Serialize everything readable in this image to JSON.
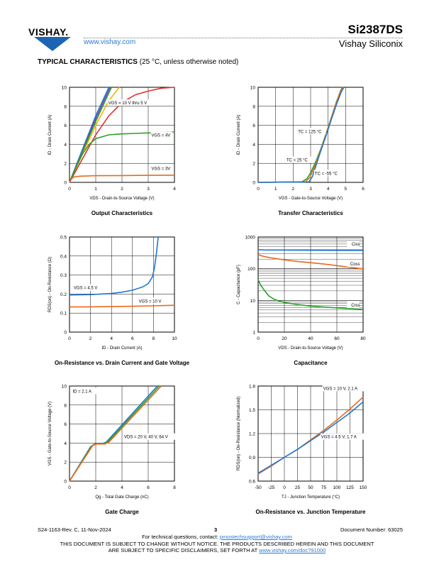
{
  "header": {
    "brand": "VISHAY.",
    "website": "www.vishay.com",
    "part_number": "Si2387DS",
    "company": "Vishay Siliconix"
  },
  "section": {
    "title": "TYPICAL CHARACTERISTICS",
    "subtitle": "(25 °C, unless otherwise noted)"
  },
  "chart_data": [
    {
      "type": "line",
      "title": "Output Characteristics",
      "xlabel": "VDS - Drain-to-Source Voltage (V)",
      "ylabel": "ID - Drain Current (A)",
      "xlim": [
        0,
        4
      ],
      "ylim": [
        0,
        10
      ],
      "xticks": [
        0,
        1,
        2,
        3,
        4
      ],
      "yticks": [
        0,
        2,
        4,
        6,
        8,
        10
      ],
      "grid": true,
      "annotations": [
        "VGS = 10 V thru 5 V",
        "VGS = 4V",
        "VGS = 3V"
      ],
      "series": [
        {
          "color": "#1f77d4",
          "x": [
            0,
            0.5,
            1.0,
            1.5
          ],
          "y": [
            0,
            3.5,
            7.0,
            10.0
          ]
        },
        {
          "color": "#7a3fb0",
          "x": [
            0,
            0.5,
            1.0,
            1.55
          ],
          "y": [
            0,
            3.3,
            6.7,
            10.0
          ]
        },
        {
          "color": "#2aa02a",
          "x": [
            0,
            0.5,
            1.0,
            1.6
          ],
          "y": [
            0,
            3.2,
            6.4,
            10.0
          ]
        },
        {
          "color": "#f4b400",
          "x": [
            0,
            0.5,
            1.0,
            1.5,
            1.9
          ],
          "y": [
            0,
            3.0,
            6.0,
            8.6,
            10.0
          ]
        },
        {
          "color": "#e03030",
          "x": [
            0,
            0.5,
            1.0,
            1.5,
            2.0,
            2.5,
            3.0,
            3.5,
            4.0
          ],
          "y": [
            0,
            2.5,
            5.0,
            7.0,
            8.4,
            9.2,
            9.6,
            9.9,
            10.0
          ]
        },
        {
          "color": "#2aa02a",
          "x": [
            0,
            0.25,
            0.5,
            0.75,
            1.0,
            1.5,
            2.0,
            2.5,
            3.0,
            3.5,
            4.0
          ],
          "y": [
            0,
            1.6,
            3.0,
            4.0,
            4.6,
            5.0,
            5.1,
            5.15,
            5.2,
            5.25,
            5.3
          ]
        },
        {
          "color": "#e86a1c",
          "x": [
            0,
            0.1,
            0.2,
            0.4,
            1.0,
            2.0,
            3.0,
            4.0
          ],
          "y": [
            0,
            0.45,
            0.6,
            0.65,
            0.7,
            0.72,
            0.74,
            0.75
          ]
        }
      ]
    },
    {
      "type": "line",
      "title": "Transfer Characteristics",
      "xlabel": "VGS - Gate-to-Source Voltage (V)",
      "ylabel": "ID - Drain Current (A)",
      "xlim": [
        0,
        6
      ],
      "ylim": [
        0,
        10
      ],
      "xticks": [
        0,
        1,
        2,
        3,
        4,
        5,
        6
      ],
      "yticks": [
        0,
        2,
        4,
        6,
        8,
        10
      ],
      "grid": true,
      "annotations": [
        "TC = 125 °C",
        "TC = 25 °C",
        "TC = -55 °C"
      ],
      "series": [
        {
          "name": "TC = 125 °C",
          "color": "#2aa02a",
          "x": [
            0,
            2.5,
            2.8,
            3.0,
            3.3,
            3.6,
            3.9,
            4.2,
            4.5,
            4.8
          ],
          "y": [
            0,
            0.05,
            0.4,
            1.0,
            2.2,
            3.6,
            5.2,
            6.9,
            8.6,
            10.0
          ]
        },
        {
          "name": "TC = 25 °C",
          "color": "#e86a1c",
          "x": [
            0,
            2.7,
            2.95,
            3.2,
            3.5,
            3.8,
            4.1,
            4.4,
            4.7,
            4.85
          ],
          "y": [
            0,
            0.05,
            0.5,
            1.5,
            3.0,
            4.6,
            6.3,
            8.0,
            9.6,
            10.0
          ]
        },
        {
          "name": "TC = -55 °C",
          "color": "#1f77d4",
          "x": [
            0,
            2.9,
            3.1,
            3.35,
            3.6,
            3.9,
            4.2,
            4.5,
            4.75,
            4.9
          ],
          "y": [
            0,
            0.05,
            0.6,
            2.0,
            3.4,
            5.0,
            6.7,
            8.3,
            9.5,
            10.0
          ]
        }
      ]
    },
    {
      "type": "line",
      "title": "On-Resistance vs. Drain Current and Gate Voltage",
      "xlabel": "ID - Drain Current (A)",
      "ylabel": "RDS(on) - On-Resistance (Ω)",
      "xlim": [
        0,
        10
      ],
      "ylim": [
        0,
        0.5
      ],
      "xticks": [
        0,
        2,
        4,
        6,
        8,
        10
      ],
      "yticks": [
        0,
        0.1,
        0.2,
        0.3,
        0.4,
        0.5
      ],
      "grid": true,
      "annotations": [
        "VGS = 4.5 V",
        "VGS = 10 V"
      ],
      "series": [
        {
          "name": "VGS = 4.5 V",
          "color": "#1f77d4",
          "x": [
            0,
            2,
            4,
            5,
            6,
            7,
            7.5,
            7.9,
            8.1,
            8.3,
            8.45
          ],
          "y": [
            0.195,
            0.197,
            0.203,
            0.21,
            0.22,
            0.238,
            0.255,
            0.29,
            0.34,
            0.42,
            0.5
          ]
        },
        {
          "name": "VGS = 10 V",
          "color": "#e86a1c",
          "x": [
            0,
            2,
            4,
            6,
            8,
            10
          ],
          "y": [
            0.132,
            0.133,
            0.134,
            0.136,
            0.138,
            0.141
          ]
        }
      ]
    },
    {
      "type": "line",
      "title": "Capacitance",
      "xlabel": "VDS - Drain-to-Source Voltage (V)",
      "ylabel": "C - Capacitance (pF)",
      "xlim": [
        0,
        80
      ],
      "ylim": [
        1,
        1000
      ],
      "yscale": "log",
      "xticks": [
        0,
        20,
        40,
        60,
        80
      ],
      "yticks": [
        1,
        10,
        100,
        1000
      ],
      "grid": true,
      "annotations": [
        "Ciss",
        "Coss",
        "Crss"
      ],
      "series": [
        {
          "name": "Ciss",
          "color": "#1f77d4",
          "x": [
            0,
            5,
            20,
            40,
            60,
            80
          ],
          "y": [
            400,
            390,
            385,
            382,
            380,
            378
          ]
        },
        {
          "name": "Coss",
          "color": "#e86a1c",
          "x": [
            0,
            2,
            5,
            10,
            20,
            30,
            40,
            50,
            60,
            70,
            80
          ],
          "y": [
            280,
            260,
            240,
            220,
            190,
            170,
            155,
            140,
            125,
            110,
            100
          ]
        },
        {
          "name": "Crss",
          "color": "#2aa02a",
          "x": [
            0,
            2,
            5,
            8,
            12,
            16,
            20,
            30,
            40,
            60,
            80
          ],
          "y": [
            45,
            30,
            20,
            14,
            11,
            9.5,
            8.6,
            7.4,
            6.6,
            5.8,
            5.2
          ]
        }
      ]
    },
    {
      "type": "line",
      "title": "Gate Charge",
      "xlabel": "Qg - Total Gate Charge (nC)",
      "ylabel": "VGS - Gate-to-Source Voltage (V)",
      "xlim": [
        0,
        8
      ],
      "ylim": [
        0,
        10
      ],
      "xticks": [
        0,
        2,
        4,
        6,
        8
      ],
      "yticks": [
        0,
        2,
        4,
        6,
        8,
        10
      ],
      "grid": true,
      "annotations": [
        "ID = 2.1 A",
        "VDS = 20 V, 40 V, 64 V"
      ],
      "series": [
        {
          "name": "VDS = 20 V",
          "color": "#1f77d4",
          "x": [
            0,
            1.6,
            1.9,
            2.4,
            2.8,
            6.7
          ],
          "y": [
            0,
            3.6,
            3.9,
            3.9,
            4.1,
            10.0
          ]
        },
        {
          "name": "VDS = 40 V",
          "color": "#2aa02a",
          "x": [
            0,
            1.7,
            2.0,
            2.5,
            2.9,
            6.85
          ],
          "y": [
            0,
            3.7,
            3.9,
            3.9,
            4.1,
            10.0
          ]
        },
        {
          "name": "VDS = 64 V",
          "color": "#e86a1c",
          "x": [
            0,
            1.8,
            2.1,
            2.7,
            3.0,
            7.0
          ],
          "y": [
            0,
            3.8,
            3.9,
            3.9,
            4.1,
            10.0
          ]
        }
      ]
    },
    {
      "type": "line",
      "title": "On-Resistance vs. Junction Temperature",
      "xlabel": "TJ - Junction Temperature (°C)",
      "ylabel": "RDS(on) - On-Resistance (Normalized)",
      "xlim": [
        -50,
        150
      ],
      "ylim": [
        0.6,
        1.8
      ],
      "xticks": [
        -50,
        -25,
        0,
        25,
        50,
        75,
        100,
        125,
        150
      ],
      "yticks": [
        0.6,
        0.9,
        1.2,
        1.5,
        1.8
      ],
      "grid": true,
      "annotations": [
        "VGS = 10 V, 2.1 A",
        "VGS = 4.5 V, 1.7 A"
      ],
      "series": [
        {
          "name": "VGS = 10 V, 2.1 A",
          "color": "#e86a1c",
          "x": [
            -50,
            -25,
            0,
            25,
            50,
            75,
            100,
            125,
            150
          ],
          "y": [
            0.69,
            0.79,
            0.9,
            1.0,
            1.12,
            1.24,
            1.37,
            1.51,
            1.66
          ]
        },
        {
          "name": "VGS = 4.5 V, 1.7 A",
          "color": "#1f77d4",
          "x": [
            -50,
            -25,
            0,
            25,
            50,
            75,
            100,
            125,
            150
          ],
          "y": [
            0.7,
            0.8,
            0.9,
            1.0,
            1.11,
            1.22,
            1.34,
            1.46,
            1.6
          ]
        }
      ]
    }
  ],
  "footer": {
    "revision": "S24-1163-Rev. C, 11-Nov-2024",
    "page": "3",
    "doc_number": "Document Number: 63025",
    "contact_prefix": "For technical questions, contact: ",
    "contact_email": "pmostechsupport@vishay.com",
    "disclaimer_line1": "THIS DOCUMENT IS SUBJECT TO CHANGE WITHOUT NOTICE. THE PRODUCTS DESCRIBED HEREIN AND THIS DOCUMENT",
    "disclaimer_line2_prefix": "ARE SUBJECT TO SPECIFIC DISCLAIMERS, SET FORTH AT ",
    "disclaimer_url": "www.vishay.com/doc?91000"
  }
}
